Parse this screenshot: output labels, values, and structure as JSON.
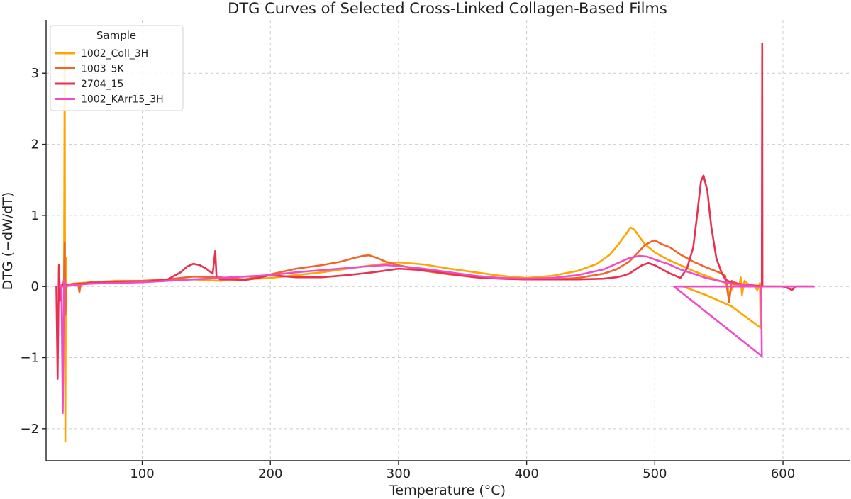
{
  "chart_data": {
    "type": "line",
    "title": "DTG Curves of Selected Cross-Linked Collagen-Based Films",
    "xlabel": "Temperature (°C)",
    "ylabel": "DTG (−dW/dT)",
    "xlim": [
      25,
      652
    ],
    "ylim": [
      -2.45,
      3.75
    ],
    "xticks": [
      100,
      200,
      300,
      400,
      500,
      600
    ],
    "yticks": [
      -2,
      -1,
      0,
      1,
      2,
      3
    ],
    "yticklabels": [
      "−2",
      "−1",
      "0",
      "1",
      "2",
      "3"
    ],
    "grid": true,
    "legend": {
      "title": "Sample",
      "placement": "upper-left"
    },
    "series": [
      {
        "name": "1002_Coll_3H",
        "color": "#FFA500",
        "x": [
          38,
          39,
          39.5,
          40,
          40.5,
          41,
          42,
          45,
          60,
          80,
          100,
          120,
          140,
          160,
          180,
          200,
          220,
          240,
          260,
          280,
          300,
          320,
          340,
          360,
          380,
          400,
          420,
          440,
          455,
          465,
          472,
          478,
          481,
          484,
          488,
          492,
          500,
          510,
          520,
          530,
          540,
          550,
          556,
          558,
          562,
          566,
          567,
          568,
          570,
          575,
          578,
          580,
          582,
          582.5,
          583,
          583.5,
          590,
          600,
          610,
          620,
          624,
          620,
          600,
          580,
          560,
          540,
          522,
          540,
          560,
          582.5
        ],
        "y": [
          0.0,
          0.1,
          3.3,
          -2.18,
          0.4,
          0.0,
          0.02,
          0.04,
          0.06,
          0.08,
          0.08,
          0.09,
          0.1,
          0.08,
          0.1,
          0.12,
          0.16,
          0.2,
          0.25,
          0.3,
          0.34,
          0.31,
          0.25,
          0.2,
          0.15,
          0.12,
          0.15,
          0.22,
          0.32,
          0.45,
          0.6,
          0.75,
          0.83,
          0.8,
          0.7,
          0.6,
          0.48,
          0.38,
          0.3,
          0.22,
          0.15,
          0.08,
          0.05,
          -0.1,
          0.02,
          0.0,
          0.13,
          -0.12,
          0.08,
          0.0,
          0.0,
          -0.05,
          0.05,
          -0.58,
          0.02,
          0.0,
          0.0,
          0.0,
          0.0,
          0.0,
          0.0,
          0.0,
          0.0,
          0.0,
          0.0,
          0.0,
          0.0,
          -0.12,
          -0.28,
          -0.58
        ]
      },
      {
        "name": "1003_5K",
        "color": "#F06424",
        "x": [
          38,
          39,
          39.5,
          40,
          41,
          45,
          50,
          51,
          52,
          60,
          80,
          100,
          120,
          130,
          140,
          160,
          180,
          200,
          220,
          240,
          255,
          265,
          272,
          277,
          282,
          290,
          300,
          320,
          340,
          360,
          380,
          400,
          420,
          440,
          460,
          470,
          480,
          487,
          492,
          497,
          500,
          505,
          512,
          520,
          530,
          540,
          550,
          555,
          558,
          560,
          562,
          565,
          570,
          575,
          580,
          585,
          590,
          600,
          610,
          620,
          624
        ],
        "y": [
          0.0,
          0.1,
          0.62,
          -0.4,
          0.0,
          0.03,
          0.04,
          -0.08,
          0.03,
          0.06,
          0.07,
          0.08,
          0.1,
          0.12,
          0.14,
          0.13,
          0.1,
          0.17,
          0.25,
          0.3,
          0.35,
          0.4,
          0.43,
          0.44,
          0.41,
          0.35,
          0.3,
          0.22,
          0.17,
          0.13,
          0.11,
          0.1,
          0.1,
          0.12,
          0.18,
          0.24,
          0.35,
          0.48,
          0.58,
          0.63,
          0.65,
          0.6,
          0.55,
          0.45,
          0.35,
          0.27,
          0.2,
          0.15,
          -0.22,
          0.08,
          0.06,
          0.04,
          0.03,
          0.02,
          0.01,
          0.0,
          0.0,
          0.0,
          0.0,
          0.0,
          0.0
        ]
      },
      {
        "name": "2704_15",
        "color": "#E8304F",
        "x": [
          33,
          34,
          35,
          36,
          37,
          38,
          40,
          45,
          60,
          80,
          100,
          120,
          130,
          135,
          140,
          145,
          150,
          155,
          157,
          158,
          159,
          161,
          170,
          180,
          190,
          200,
          220,
          240,
          260,
          280,
          300,
          320,
          340,
          360,
          380,
          400,
          420,
          440,
          460,
          470,
          475,
          480,
          485,
          490,
          495,
          500,
          510,
          520,
          525,
          530,
          533,
          536,
          538,
          541,
          544,
          548,
          552,
          555,
          560,
          570,
          580,
          583.5,
          583.8,
          584,
          584.3,
          590,
          600,
          605,
          607,
          610,
          620,
          624
        ],
        "y": [
          0.0,
          -1.3,
          0.3,
          -0.2,
          0.0,
          0.02,
          0.02,
          0.03,
          0.05,
          0.06,
          0.06,
          0.1,
          0.2,
          0.28,
          0.32,
          0.3,
          0.25,
          0.18,
          0.5,
          0.12,
          0.12,
          0.1,
          0.1,
          0.09,
          0.12,
          0.16,
          0.13,
          0.13,
          0.16,
          0.2,
          0.25,
          0.23,
          0.18,
          0.13,
          0.11,
          0.1,
          0.1,
          0.1,
          0.11,
          0.13,
          0.15,
          0.18,
          0.24,
          0.3,
          0.33,
          0.3,
          0.2,
          0.12,
          0.25,
          0.55,
          1.0,
          1.48,
          1.56,
          1.35,
          0.85,
          0.4,
          0.2,
          0.1,
          0.05,
          0.02,
          0.01,
          0.0,
          3.42,
          0.0,
          0.0,
          0.0,
          0.0,
          -0.03,
          -0.05,
          0.0,
          0.0,
          0.0
        ]
      },
      {
        "name": "1002_KArr15_3H",
        "color": "#F04CC8",
        "x": [
          36,
          37,
          38,
          39,
          40,
          41,
          43,
          45,
          60,
          80,
          100,
          120,
          140,
          160,
          180,
          200,
          220,
          240,
          260,
          280,
          290,
          300,
          320,
          340,
          360,
          380,
          400,
          420,
          440,
          460,
          470,
          480,
          488,
          494,
          500,
          510,
          520,
          530,
          540,
          550,
          560,
          570,
          575,
          580,
          583,
          583.5,
          515,
          540,
          560,
          580,
          600,
          620,
          624
        ],
        "y": [
          0.0,
          0.02,
          -1.78,
          0.1,
          0.0,
          0.01,
          0.02,
          0.02,
          0.04,
          0.05,
          0.06,
          0.08,
          0.1,
          0.12,
          0.14,
          0.16,
          0.2,
          0.23,
          0.26,
          0.29,
          0.3,
          0.29,
          0.25,
          0.2,
          0.15,
          0.12,
          0.11,
          0.12,
          0.16,
          0.24,
          0.32,
          0.4,
          0.43,
          0.42,
          0.38,
          0.32,
          0.24,
          0.18,
          0.12,
          0.08,
          0.04,
          0.02,
          0.01,
          0.0,
          0.0,
          -0.98,
          0.0,
          0.0,
          0.0,
          0.0,
          0.0,
          0.0,
          0.0
        ]
      }
    ]
  }
}
